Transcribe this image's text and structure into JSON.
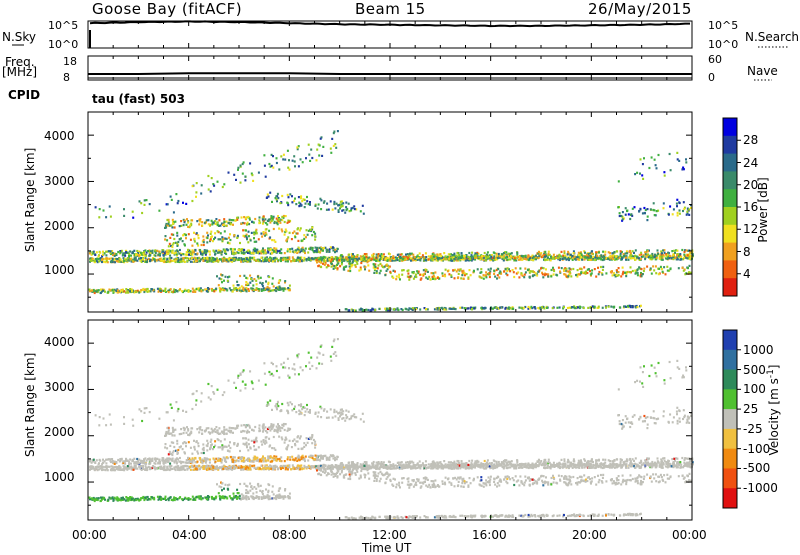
{
  "header": {
    "station": "Goose Bay (fitACF)",
    "beam": "Beam 15",
    "date": "26/May/2015"
  },
  "params": {
    "nsky_label": "N.Sky",
    "nsky_tick_top": "10^5",
    "nsky_tick_bot": "10^0",
    "nsearch_label": "N.Search",
    "nsearch_tick_top": "10^5",
    "nsearch_tick_bot": "10^0",
    "freq_label": "Freq.",
    "freq_unit": "[MHz]",
    "freq_tick_top": "18",
    "freq_tick_bot": "8",
    "nave_label": "Nave",
    "nave_tick_top": "60",
    "nave_tick_bot": "0",
    "cpid_label": "CPID",
    "cpid_value": "tau (fast) 503"
  },
  "axes": {
    "xlabel": "Time UT",
    "ylabel": "Slant Range [km]",
    "x_ticks": [
      "00:00",
      "04:00",
      "08:00",
      "12:00",
      "16:00",
      "20:00",
      "00:00"
    ],
    "y_ticks": [
      "1000",
      "2000",
      "3000",
      "4000"
    ]
  },
  "colorbars": {
    "power": {
      "title": "Power [dB]",
      "ticks": [
        "4",
        "8",
        "12",
        "16",
        "20",
        "24",
        "28"
      ],
      "colors": [
        "#0000e0",
        "#1f3aa0",
        "#2a6a8a",
        "#3a8a6a",
        "#40b040",
        "#a0d020",
        "#f0e020",
        "#f0a020",
        "#f06010",
        "#e02010"
      ]
    },
    "velocity": {
      "title": "Velocity [m s",
      "title_sup": "-1",
      "title_end": "]",
      "ticks": [
        "1000",
        "500",
        "100",
        "25",
        "-25",
        "-100",
        "-500",
        "-1000"
      ],
      "colors": [
        "#2040b0",
        "#3070a0",
        "#2e8a5a",
        "#50c030",
        "#c0c0b8",
        "#f0c040",
        "#f08a10",
        "#f05010",
        "#e01010"
      ]
    }
  },
  "chart_data": [
    {
      "type": "line",
      "title": "N.Sky / N.Search",
      "x_range_hours": [
        0,
        24
      ],
      "series": [
        {
          "name": "N.Sky",
          "values_log10": [
            4.6,
            4.8,
            4.9,
            4.8,
            4.6,
            4.4,
            4.3,
            4.2,
            4.1,
            4.1,
            4.2,
            4.3,
            4.5
          ]
        }
      ]
    },
    {
      "type": "line",
      "title": "Freq. / Nave",
      "x_range_hours": [
        0,
        24
      ],
      "series": [
        {
          "name": "Freq",
          "values": [
            10.5,
            10.5,
            10.8,
            10.8,
            10.8,
            10.5,
            10.5,
            10.5,
            10.5,
            10.5,
            10.5,
            10.5,
            10.5
          ]
        }
      ]
    },
    {
      "type": "heatmap",
      "title": "Power [dB]",
      "x_range_hours": [
        0,
        24
      ],
      "y_range_km": [
        180,
        4500
      ],
      "value_range": [
        0,
        30
      ]
    },
    {
      "type": "heatmap",
      "title": "Velocity [m s-1]",
      "x_range_hours": [
        0,
        24
      ],
      "y_range_km": [
        180,
        4500
      ],
      "value_range": [
        -1000,
        1000
      ]
    }
  ]
}
